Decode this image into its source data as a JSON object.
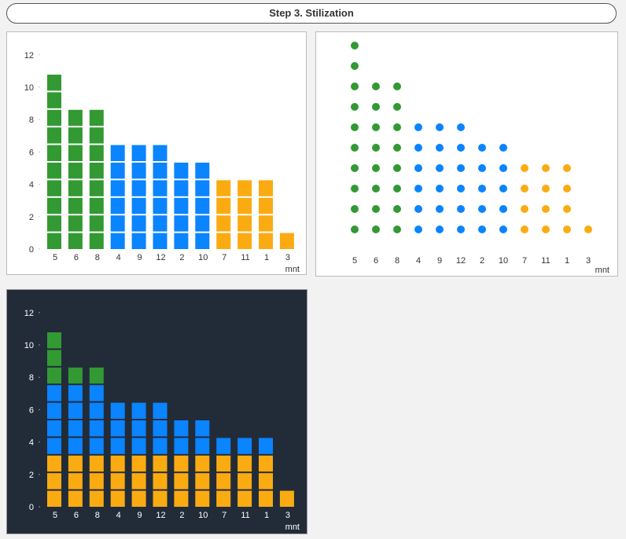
{
  "header": {
    "title": "Step 3. Stilization"
  },
  "colors": {
    "green": "#339933",
    "blue": "#0a84ff",
    "orange": "#fbab12",
    "dark_bg": "#222c38"
  },
  "chart_data": [
    {
      "type": "bar",
      "subtype": "unit-stacked",
      "title": "",
      "xlabel": "mnt",
      "ylabel": "",
      "ylim": [
        0,
        12
      ],
      "yticks": [
        0,
        2,
        4,
        6,
        8,
        10,
        12
      ],
      "categories": [
        "5",
        "6",
        "8",
        "4",
        "9",
        "12",
        "2",
        "10",
        "7",
        "11",
        "1",
        "3"
      ],
      "values": [
        10,
        8,
        8,
        6,
        6,
        6,
        5,
        5,
        4,
        4,
        4,
        1
      ],
      "colors": [
        "green",
        "green",
        "green",
        "blue",
        "blue",
        "blue",
        "blue",
        "blue",
        "orange",
        "orange",
        "orange",
        "orange"
      ]
    },
    {
      "type": "scatter",
      "subtype": "dot-plot",
      "title": "",
      "xlabel": "mnt",
      "categories": [
        "5",
        "6",
        "8",
        "4",
        "9",
        "12",
        "2",
        "10",
        "7",
        "11",
        "1",
        "3"
      ],
      "values": [
        10,
        8,
        8,
        6,
        6,
        6,
        5,
        5,
        4,
        4,
        4,
        1
      ],
      "colors": [
        "green",
        "green",
        "green",
        "blue",
        "blue",
        "blue",
        "blue",
        "blue",
        "orange",
        "orange",
        "orange",
        "orange"
      ]
    },
    {
      "type": "bar",
      "subtype": "unit-stacked",
      "theme": "dark",
      "title": "",
      "xlabel": "mnt",
      "ylim": [
        0,
        12
      ],
      "yticks": [
        0,
        2,
        4,
        6,
        8,
        10,
        12
      ],
      "categories": [
        "5",
        "6",
        "8",
        "4",
        "9",
        "12",
        "2",
        "10",
        "7",
        "11",
        "1",
        "3"
      ],
      "series": [
        {
          "name": "orange",
          "color": "orange",
          "values": [
            3,
            3,
            3,
            3,
            3,
            3,
            3,
            3,
            3,
            3,
            3,
            1
          ]
        },
        {
          "name": "blue",
          "color": "blue",
          "values": [
            4,
            4,
            4,
            3,
            3,
            3,
            2,
            2,
            1,
            1,
            1,
            0
          ]
        },
        {
          "name": "green",
          "color": "green",
          "values": [
            3,
            1,
            1,
            0,
            0,
            0,
            0,
            0,
            0,
            0,
            0,
            0
          ]
        }
      ]
    }
  ]
}
